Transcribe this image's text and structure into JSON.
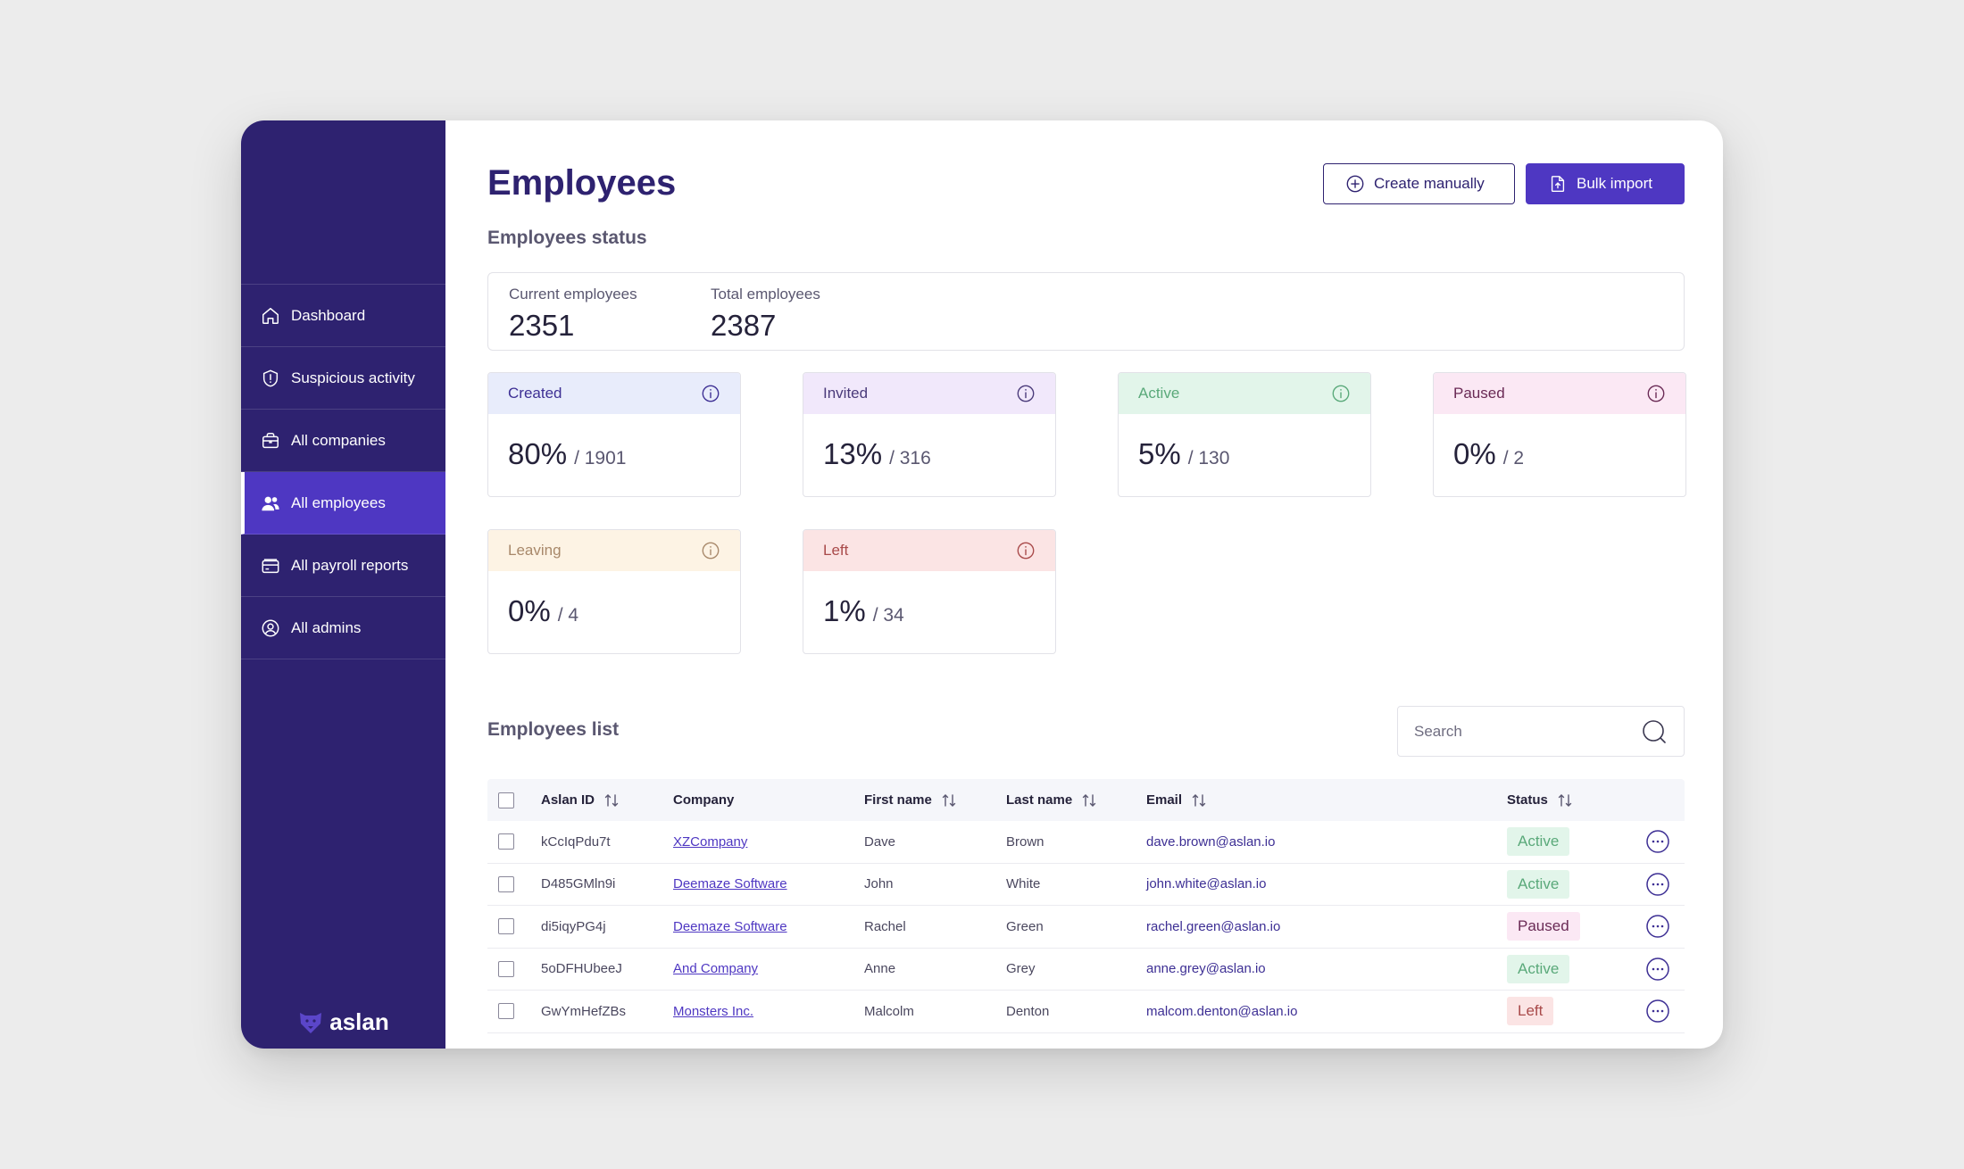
{
  "sidebar": {
    "items": [
      {
        "label": "Dashboard",
        "icon": "home-icon"
      },
      {
        "label": "Suspicious activity",
        "icon": "alert-icon"
      },
      {
        "label": "All companies",
        "icon": "briefcase-icon"
      },
      {
        "label": "All employees",
        "icon": "users-icon",
        "active": true
      },
      {
        "label": "All payroll reports",
        "icon": "wallet-icon"
      },
      {
        "label": "All admins",
        "icon": "admin-icon"
      }
    ],
    "logo_text": "aslan"
  },
  "header": {
    "title": "Employees",
    "create_label": "Create manually",
    "import_label": "Bulk import"
  },
  "status": {
    "section_title": "Employees status",
    "current_label": "Current employees",
    "current_value": "2351",
    "total_label": "Total employees",
    "total_value": "2387",
    "cards": [
      {
        "label": "Created",
        "pct": "80%",
        "count": "/ 1901",
        "bg": "#e8ecfb",
        "fg": "#3d2f94"
      },
      {
        "label": "Invited",
        "pct": "13%",
        "count": "/ 316",
        "bg": "#f1e8fb",
        "fg": "#4a3a7a"
      },
      {
        "label": "Active",
        "pct": "5%",
        "count": "/ 130",
        "bg": "#e2f5ea",
        "fg": "#5aa97a"
      },
      {
        "label": "Paused",
        "pct": "0%",
        "count": "/ 2",
        "bg": "#fbe8f4",
        "fg": "#6a2a55"
      },
      {
        "label": "Leaving",
        "pct": "0%",
        "count": "/ 4",
        "bg": "#fdf3e4",
        "fg": "#a8886a"
      },
      {
        "label": "Left",
        "pct": "1%",
        "count": "/ 34",
        "bg": "#fbe4e4",
        "fg": "#a94a4a"
      }
    ]
  },
  "list": {
    "section_title": "Employees list",
    "search_placeholder": "Search",
    "columns": {
      "id": "Aslan ID",
      "company": "Company",
      "first": "First name",
      "last": "Last name",
      "email": "Email",
      "status": "Status"
    },
    "rows": [
      {
        "id": "kCcIqPdu7t",
        "company": "XZCompany",
        "first": "Dave",
        "last": "Brown",
        "email": "dave.brown@aslan.io",
        "status": "Active"
      },
      {
        "id": "D485GMln9i",
        "company": "Deemaze Software",
        "first": "John",
        "last": "White",
        "email": "john.white@aslan.io",
        "status": "Active"
      },
      {
        "id": "di5iqyPG4j",
        "company": "Deemaze Software",
        "first": "Rachel",
        "last": "Green",
        "email": "rachel.green@aslan.io",
        "status": "Paused"
      },
      {
        "id": "5oDFHUbeeJ",
        "company": "And Company",
        "first": "Anne",
        "last": "Grey",
        "email": "anne.grey@aslan.io",
        "status": "Active"
      },
      {
        "id": "GwYmHefZBs",
        "company": "Monsters Inc.",
        "first": "Malcolm",
        "last": "Denton",
        "email": "malcom.denton@aslan.io",
        "status": "Left"
      }
    ],
    "status_colors": {
      "Active": {
        "bg": "#e2f5ea",
        "fg": "#5aa97a"
      },
      "Paused": {
        "bg": "#fbe8f4",
        "fg": "#6a2a55"
      },
      "Left": {
        "bg": "#fbe4e4",
        "fg": "#a94a4a"
      }
    }
  }
}
